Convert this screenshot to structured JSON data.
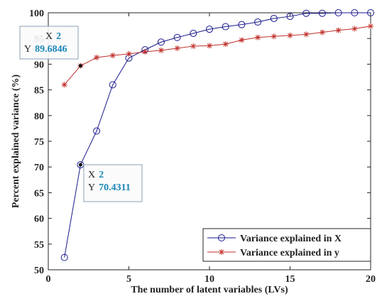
{
  "chart_data": {
    "type": "line",
    "xlabel": "The number of latent variables (LVs)",
    "ylabel": "Percent explained variance (%)",
    "x": [
      1,
      2,
      3,
      4,
      5,
      6,
      7,
      8,
      9,
      10,
      11,
      12,
      13,
      14,
      15,
      16,
      17,
      18,
      19,
      20
    ],
    "series": [
      {
        "name": "Variance explained in X",
        "color": "#1a1a8c",
        "marker": "circle",
        "values": [
          52.4,
          70.4311,
          77,
          86,
          91.2,
          92.8,
          94.3,
          95.2,
          96,
          96.8,
          97.3,
          97.7,
          98.2,
          98.9,
          99.3,
          99.9,
          99.9,
          100,
          100,
          100
        ]
      },
      {
        "name": "Variance explained in y",
        "color": "#c0302b",
        "marker": "star",
        "values": [
          86,
          89.6846,
          91.3,
          91.7,
          92,
          92.4,
          92.7,
          93.1,
          93.5,
          93.6,
          93.9,
          94.7,
          95.2,
          95.4,
          95.6,
          95.8,
          96.2,
          96.6,
          96.9,
          97.4
        ]
      }
    ],
    "xlim": [
      0,
      20
    ],
    "xticks": [
      0,
      5,
      10,
      15,
      20
    ],
    "ylim": [
      50,
      100
    ],
    "yticks": [
      50,
      55,
      60,
      65,
      70,
      75,
      80,
      85,
      90,
      95,
      100
    ],
    "legend": "bottom-right",
    "annotations": [
      {
        "x_label": "X",
        "x_value": "2",
        "y_label": "Y",
        "y_value": "89.6846"
      },
      {
        "x_label": "X",
        "x_value": "2",
        "y_label": "Y",
        "y_value": "70.4311"
      }
    ]
  }
}
